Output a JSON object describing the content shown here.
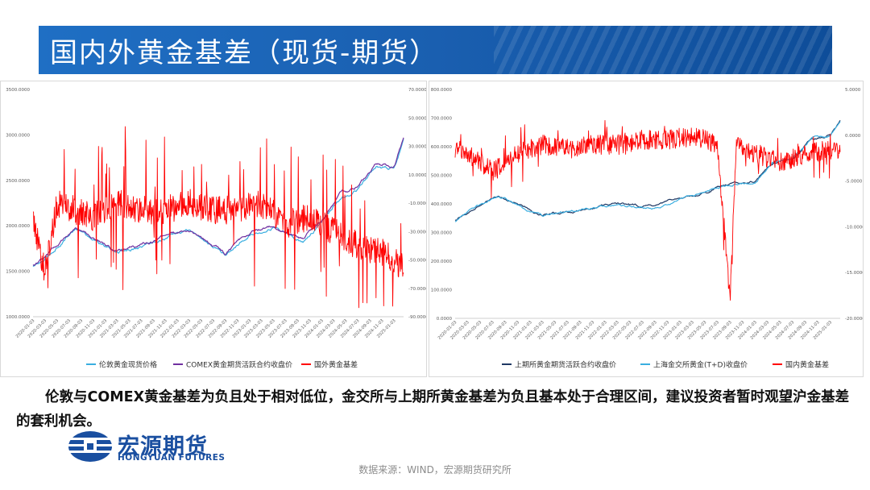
{
  "header": {
    "title": "国内外黄金基差（现货-期货）"
  },
  "note": {
    "text": "伦敦与COMEX黄金基差为负且处于相对低位，金交所与上期所黄金基差为负且基本处于合理区间，建议投资者暂时观望沪金基差的套利机会。"
  },
  "footer": {
    "logo_cn": "宏源期货",
    "logo_en": "HONGYUAN FUTURES",
    "source": "数据来源：WIND，宏源期货研究所"
  },
  "colors": {
    "red": "#ff0000",
    "purple": "#7030a0",
    "lightblue": "#3aaee0",
    "navy": "#1f3864",
    "title_blue": "#1a5fb0"
  },
  "chart_data": [
    {
      "type": "line",
      "x_tick_labels": [
        "2020-01-03",
        "2020-03-03",
        "2020-05-03",
        "2020-07-03",
        "2020-09-03",
        "2020-11-03",
        "2021-01-03",
        "2021-03-03",
        "2021-05-03",
        "2021-07-03",
        "2021-09-03",
        "2021-11-03",
        "2022-01-03",
        "2022-03-03",
        "2022-05-03",
        "2022-07-03",
        "2022-09-03",
        "2022-11-03",
        "2023-01-03",
        "2023-03-03",
        "2023-05-03",
        "2023-07-03",
        "2023-09-03",
        "2023-11-03",
        "2024-01-03",
        "2024-03-03",
        "2024-05-03",
        "2024-07-03",
        "2024-09-03",
        "2024-11-03",
        "2025-01-03"
      ],
      "x_range": [
        "2020-01-03",
        "2025-02-20"
      ],
      "y_left": {
        "ticks": [
          "1000.0000",
          "1500.0000",
          "2000.0000",
          "2500.0000",
          "3000.0000",
          "3500.0000"
        ],
        "ylim": [
          1000,
          3500
        ]
      },
      "y_right": {
        "ticks": [
          "-90.0000",
          "-70.0000",
          "-50.0000",
          "-30.0000",
          "-10.0000",
          "10.0000",
          "30.0000",
          "50.0000",
          "70.0000"
        ],
        "ylim": [
          -90,
          70
        ]
      },
      "legend_position": "bottom",
      "series": [
        {
          "name": "伦敦黄金现货价格",
          "axis": "left",
          "color": "#3aaee0",
          "x": [
            "2020-01-03",
            "2020-03-03",
            "2020-08-03",
            "2021-03-03",
            "2021-08-03",
            "2022-03-03",
            "2022-09-03",
            "2023-01-03",
            "2023-05-03",
            "2023-10-03",
            "2024-01-03",
            "2024-04-03",
            "2024-07-03",
            "2024-10-03",
            "2025-01-03",
            "2025-02-20"
          ],
          "values": [
            1550,
            1620,
            1980,
            1700,
            1800,
            1950,
            1680,
            1900,
            2000,
            1830,
            2050,
            2300,
            2400,
            2650,
            2640,
            2930
          ]
        },
        {
          "name": "COMEX黄金期货活跃合约收盘价",
          "axis": "left",
          "color": "#7030a0",
          "x": [
            "2020-01-03",
            "2020-03-03",
            "2020-08-03",
            "2021-03-03",
            "2021-08-03",
            "2022-03-03",
            "2022-09-03",
            "2023-01-03",
            "2023-05-03",
            "2023-10-03",
            "2024-01-03",
            "2024-04-03",
            "2024-07-03",
            "2024-10-03",
            "2025-01-03",
            "2025-02-20"
          ],
          "values": [
            1560,
            1640,
            1990,
            1720,
            1810,
            1960,
            1690,
            1920,
            2010,
            1850,
            2070,
            2330,
            2430,
            2680,
            2680,
            2960
          ]
        },
        {
          "name": "国外黄金基差",
          "axis": "right",
          "color": "#ff0000",
          "note": "high-frequency, mostly between -30 and 0, spikes to ~+45 and ~-80",
          "x": [
            "2020-01-03",
            "2020-03-03",
            "2020-05-03",
            "2020-08-03",
            "2020-11-03",
            "2021-03-03",
            "2021-07-03",
            "2021-11-03",
            "2022-03-03",
            "2022-07-03",
            "2022-11-03",
            "2023-03-03",
            "2023-07-03",
            "2023-11-03",
            "2024-03-03",
            "2024-07-03",
            "2024-11-03",
            "2025-02-20"
          ],
          "values": [
            -20,
            -60,
            -10,
            -15,
            -20,
            -10,
            -15,
            -15,
            -10,
            -15,
            -15,
            -10,
            -25,
            -20,
            -30,
            -40,
            -45,
            -55
          ]
        }
      ]
    },
    {
      "type": "line",
      "x_tick_labels": [
        "2020-01-03",
        "2020-03-03",
        "2020-05-03",
        "2020-07-03",
        "2020-09-03",
        "2020-11-03",
        "2021-01-03",
        "2021-03-03",
        "2021-05-03",
        "2021-07-03",
        "2021-09-03",
        "2021-11-03",
        "2022-01-03",
        "2022-03-03",
        "2022-05-03",
        "2022-07-03",
        "2022-09-03",
        "2022-11-03",
        "2023-01-03",
        "2023-03-03",
        "2023-05-03",
        "2023-07-03",
        "2023-09-03",
        "2023-11-03",
        "2024-01-03",
        "2024-03-03",
        "2024-05-03",
        "2024-07-03",
        "2024-09-03",
        "2024-11-03",
        "2025-01-03"
      ],
      "x_range": [
        "2020-01-03",
        "2025-02-20"
      ],
      "y_left": {
        "ticks": [
          "0.0000",
          "100.0000",
          "200.0000",
          "300.0000",
          "400.0000",
          "500.0000",
          "600.0000",
          "700.0000",
          "800.0000"
        ],
        "ylim": [
          0,
          800
        ]
      },
      "y_right": {
        "ticks": [
          "-20.0000",
          "-15.0000",
          "-10.0000",
          "-5.0000",
          "0.0000",
          "5.0000"
        ],
        "ylim": [
          -20,
          5
        ]
      },
      "legend_position": "bottom",
      "series": [
        {
          "name": "上期所黄金期货活跃合约收盘价",
          "axis": "left",
          "color": "#1f3864",
          "x": [
            "2020-01-03",
            "2020-03-03",
            "2020-08-03",
            "2021-03-03",
            "2021-08-03",
            "2022-03-03",
            "2022-09-03",
            "2023-03-03",
            "2023-09-03",
            "2024-01-03",
            "2024-04-03",
            "2024-07-03",
            "2024-10-03",
            "2025-01-03",
            "2025-02-20"
          ],
          "values": [
            345,
            370,
            430,
            360,
            375,
            400,
            390,
            430,
            470,
            480,
            550,
            560,
            630,
            640,
            690
          ]
        },
        {
          "name": "上海金交所黄金(T+D)收盘价",
          "axis": "left",
          "color": "#3aaee0",
          "x": [
            "2020-01-03",
            "2020-03-03",
            "2020-08-03",
            "2021-03-03",
            "2021-08-03",
            "2022-03-03",
            "2022-09-03",
            "2023-03-03",
            "2023-09-03",
            "2024-01-03",
            "2024-04-03",
            "2024-07-03",
            "2024-10-03",
            "2025-01-03",
            "2025-02-20"
          ],
          "values": [
            340,
            368,
            428,
            358,
            374,
            398,
            388,
            428,
            468,
            478,
            548,
            558,
            628,
            636,
            688
          ]
        },
        {
          "name": "国内黄金基差",
          "axis": "right",
          "color": "#ff0000",
          "note": "high-frequency, mostly between -4 and 0, spike to ~-18 in mid-2023",
          "x": [
            "2020-01-03",
            "2020-03-03",
            "2020-07-03",
            "2020-11-03",
            "2021-03-03",
            "2021-07-03",
            "2021-11-03",
            "2022-03-03",
            "2022-07-03",
            "2022-11-03",
            "2023-03-03",
            "2023-07-03",
            "2023-09-03",
            "2023-10-03",
            "2024-01-03",
            "2024-05-03",
            "2024-09-03",
            "2025-01-03",
            "2025-02-20"
          ],
          "values": [
            -1.5,
            -2,
            -4,
            -2,
            -1,
            -1.5,
            -1,
            -1,
            -0.5,
            -0.5,
            0,
            -1,
            -18,
            -1,
            -2,
            -3,
            -2,
            -1.5,
            -1.8
          ]
        }
      ]
    }
  ]
}
